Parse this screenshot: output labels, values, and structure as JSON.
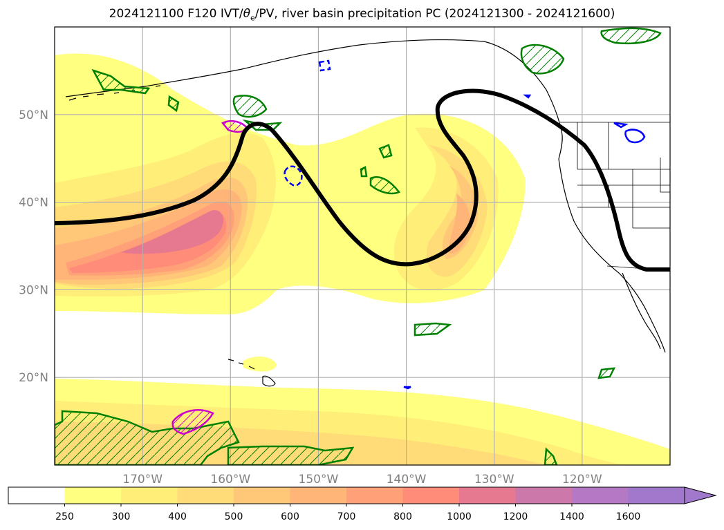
{
  "title": {
    "prefix": "2024121100 F120 IVT/",
    "theta": "θ",
    "theta_sub": "e",
    "suffix": "/PV, river basin precipitation PC (2024121300 - 2024121600)"
  },
  "map": {
    "projection": "cylindrical",
    "lon_range": [
      -180,
      -110
    ],
    "lat_range": [
      10,
      60
    ],
    "lat_ticks": [
      {
        "value": 50,
        "label": "50°N"
      },
      {
        "value": 40,
        "label": "40°N"
      },
      {
        "value": 30,
        "label": "30°N"
      },
      {
        "value": 20,
        "label": "20°N"
      }
    ],
    "lon_ticks": [
      {
        "value": -170,
        "label": "170°W"
      },
      {
        "value": -160,
        "label": "160°W"
      },
      {
        "value": -150,
        "label": "150°W"
      },
      {
        "value": -140,
        "label": "140°W"
      },
      {
        "value": -130,
        "label": "130°W"
      },
      {
        "value": -120,
        "label": "120°W"
      }
    ],
    "grid": true
  },
  "colorbar": {
    "levels": [
      "250",
      "300",
      "400",
      "500",
      "600",
      "700",
      "800",
      "1000",
      "1200",
      "1400",
      "1600"
    ],
    "colors": [
      "#ffffff",
      "#ffff80",
      "#ffee78",
      "#ffdc78",
      "#ffc878",
      "#ffb478",
      "#ffa078",
      "#ff8c78",
      "#e67890",
      "#cc78aa",
      "#b478c4",
      "#a078cc"
    ],
    "extend": "max"
  },
  "colors": {
    "pv_contour": "#000000",
    "theta_e_positive": "#008000",
    "theta_e_negative": "#0000ff",
    "magenta_contour": "#cc00cc",
    "coastline": "#000000",
    "grid": "#b0b0b0"
  }
}
